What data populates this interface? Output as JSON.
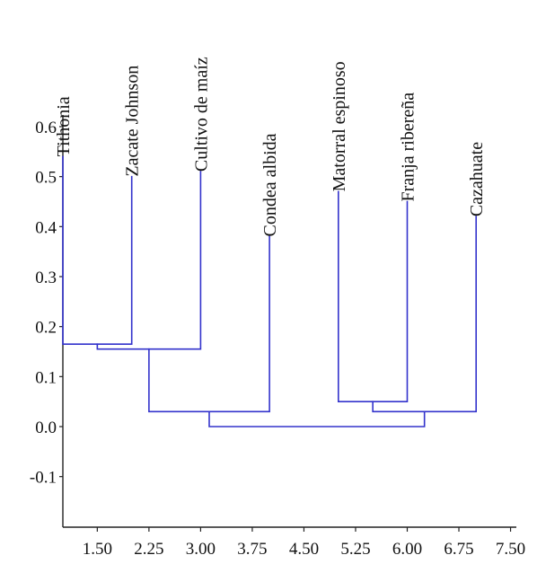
{
  "colors": {
    "link": "#3333cc",
    "axis": "#222222",
    "text": "#111111"
  },
  "chart_data": {
    "type": "dendrogram",
    "title": "",
    "xlabel": "",
    "ylabel": "",
    "ylim": [
      -0.2,
      0.6
    ],
    "xlim": [
      1.0,
      7.75
    ],
    "y_ticks": [
      "0.6",
      "0.5",
      "0.4",
      "0.3",
      "0.2",
      "0.1",
      "0.0",
      "-0.1"
    ],
    "y_tick_values": [
      0.6,
      0.5,
      0.4,
      0.3,
      0.2,
      0.1,
      0.0,
      -0.1
    ],
    "x_ticks": [
      "1.50",
      "2.25",
      "3.00",
      "3.75",
      "4.50",
      "5.25",
      "6.00",
      "6.75",
      "7.50"
    ],
    "x_tick_values": [
      1.5,
      2.25,
      3.0,
      3.75,
      4.5,
      5.25,
      6.0,
      6.75,
      7.5
    ],
    "leaves": [
      {
        "name": "Tithonia",
        "x": 1.0,
        "height": 0.54
      },
      {
        "name": "Zacate Johnson",
        "x": 2.0,
        "height": 0.5
      },
      {
        "name": "Cultivo de maíz",
        "x": 3.0,
        "height": 0.51
      },
      {
        "name": "Condea albida",
        "x": 4.0,
        "height": 0.38
      },
      {
        "name": "Matorral espinoso",
        "x": 5.0,
        "height": 0.47
      },
      {
        "name": "Franja ribereña",
        "x": 6.0,
        "height": 0.45
      },
      {
        "name": "Cazahuate",
        "x": 7.0,
        "height": 0.42
      }
    ],
    "merges": [
      {
        "id": "A",
        "left": "Tithonia",
        "right": "Zacate Johnson",
        "height": 0.165
      },
      {
        "id": "B",
        "left": "A",
        "right": "Cultivo de maíz",
        "height": 0.155
      },
      {
        "id": "C",
        "left": "B",
        "right": "Condea albida",
        "height": 0.03
      },
      {
        "id": "D",
        "left": "Matorral espinoso",
        "right": "Franja ribereña",
        "height": 0.05
      },
      {
        "id": "E",
        "left": "D",
        "right": "Cazahuate",
        "height": 0.03
      },
      {
        "id": "F",
        "left": "C",
        "right": "E",
        "height": 0.0
      }
    ]
  }
}
